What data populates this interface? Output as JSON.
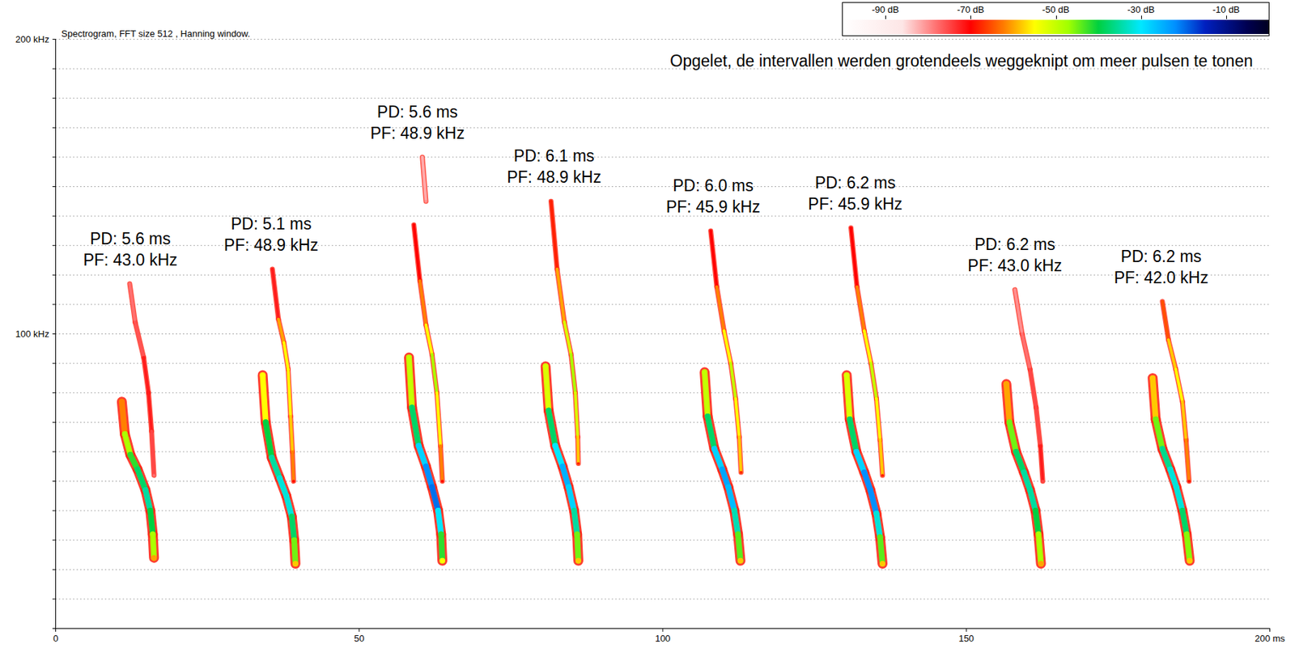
{
  "chart_data": {
    "type": "spectrogram",
    "title": "Spectrogram, FFT size 512 , Hanning window.",
    "annotation": "Opgelet, de intervallen werden grotendeels weggeknipt om meer pulsen te tonen",
    "xlim": [
      0,
      200
    ],
    "xticks": [
      0,
      50,
      100,
      150,
      {
        "value": 200,
        "label": "200 ms"
      }
    ],
    "ylim": [
      0,
      200
    ],
    "yticks": [
      {
        "value": 0,
        "label": null
      },
      {
        "value": 10,
        "label": null
      },
      {
        "value": 20,
        "label": null
      },
      {
        "value": 30,
        "label": null
      },
      {
        "value": 40,
        "label": null
      },
      {
        "value": 50,
        "label": null
      },
      {
        "value": 60,
        "label": null
      },
      {
        "value": 70,
        "label": null
      },
      {
        "value": 80,
        "label": null
      },
      {
        "value": 90,
        "label": null
      },
      {
        "value": 100,
        "label": "100 kHz"
      },
      {
        "value": 110,
        "label": null
      },
      {
        "value": 120,
        "label": null
      },
      {
        "value": 130,
        "label": null
      },
      {
        "value": 140,
        "label": null
      },
      {
        "value": 150,
        "label": null
      },
      {
        "value": 160,
        "label": null
      },
      {
        "value": 170,
        "label": null
      },
      {
        "value": 180,
        "label": null
      },
      {
        "value": 190,
        "label": null
      },
      {
        "value": 200,
        "label": "200 kHz"
      }
    ],
    "grid": "y",
    "colorbar": {
      "range": [
        -100,
        0
      ],
      "ticks": [
        {
          "value": -90,
          "label": "-90 dB"
        },
        {
          "value": -70,
          "label": "-70 dB"
        },
        {
          "value": -50,
          "label": "-50 dB"
        },
        {
          "value": -30,
          "label": "-30 dB"
        },
        {
          "value": -10,
          "label": "-10 dB"
        }
      ]
    },
    "pulses": [
      {
        "annotation": [
          "PD: 5.6 ms",
          "PF: 43.0 kHz"
        ],
        "traces": [
          {
            "x": [
              10.9,
              11.4,
              12.3,
              13.5,
              14.8,
              15.6,
              16.0,
              16.2
            ],
            "y": [
              77,
              66,
              59,
              54,
              47,
              40,
              32,
              24
            ],
            "db": [
              -62,
              -48,
              -42,
              -38,
              -35,
              -40,
              -48,
              -60
            ]
          },
          {
            "x": [
              12.2,
              13.1,
              14.5,
              15.3,
              15.8,
              16.2
            ],
            "y": [
              117,
              104,
              92,
              80,
              67,
              52
            ],
            "db": [
              -78,
              -76,
              -72,
              -72,
              -75,
              -78
            ]
          }
        ]
      },
      {
        "annotation": [
          "PD: 5.1 ms",
          "PF: 48.9 kHz"
        ],
        "traces": [
          {
            "x": [
              34.1,
              34.6,
              35.6,
              36.9,
              38.0,
              38.9,
              39.3,
              39.5
            ],
            "y": [
              86,
              70,
              58,
              51,
              45,
              38,
              30,
              22
            ],
            "db": [
              -55,
              -40,
              -35,
              -32,
              -32,
              -38,
              -45,
              -58
            ]
          },
          {
            "x": [
              35.7,
              36.7,
              37.6,
              38.3,
              38.7,
              39.0,
              39.2
            ],
            "y": [
              122,
              105,
              97,
              88,
              72,
              60,
              50
            ],
            "db": [
              -72,
              -60,
              -55,
              -55,
              -58,
              -62,
              -70
            ]
          }
        ]
      },
      {
        "annotation": [
          "PD: 5.6 ms",
          "PF: 48.9 kHz"
        ],
        "traces": [
          {
            "x": [
              58.2,
              58.7,
              59.8,
              61.0,
              62.0,
              63.0,
              63.5,
              63.7
            ],
            "y": [
              92,
              75,
              62,
              55,
              48,
              40,
              32,
              23
            ],
            "db": [
              -50,
              -38,
              -28,
              -22,
              -20,
              -30,
              -42,
              -55
            ]
          },
          {
            "x": [
              59.0,
              60.0,
              61.0,
              62.0,
              62.8,
              63.4,
              63.7
            ],
            "y": [
              137,
              118,
              103,
              93,
              80,
              62,
              50
            ],
            "db": [
              -70,
              -62,
              -55,
              -48,
              -55,
              -62,
              -70
            ]
          },
          {
            "x": [
              60.4,
              61.0
            ],
            "y": [
              160,
              145
            ],
            "db": [
              -82,
              -80
            ]
          }
        ]
      },
      {
        "annotation": [
          "PD: 6.1 ms",
          "PF: 48.9 kHz"
        ],
        "traces": [
          {
            "x": [
              80.7,
              81.2,
              82.3,
              83.5,
              84.5,
              85.4,
              85.9,
              86.1
            ],
            "y": [
              89,
              74,
              62,
              55,
              48,
              40,
              32,
              23
            ],
            "db": [
              -52,
              -38,
              -30,
              -25,
              -28,
              -35,
              -45,
              -58
            ]
          },
          {
            "x": [
              81.6,
              82.6,
              83.8,
              84.9,
              85.6,
              86.0,
              86.1
            ],
            "y": [
              145,
              122,
              104,
              93,
              80,
              65,
              56
            ],
            "db": [
              -68,
              -60,
              -52,
              -48,
              -52,
              -58,
              -68
            ]
          }
        ]
      },
      {
        "annotation": [
          "PD: 6.0 ms",
          "PF: 45.9 kHz"
        ],
        "traces": [
          {
            "x": [
              106.9,
              107.4,
              108.5,
              109.8,
              110.8,
              111.8,
              112.4,
              112.8
            ],
            "y": [
              87,
              72,
              61,
              54,
              48,
              40,
              32,
              23
            ],
            "db": [
              -50,
              -38,
              -28,
              -24,
              -26,
              -34,
              -44,
              -58
            ]
          },
          {
            "x": [
              107.9,
              108.9,
              110.1,
              111.2,
              112.0,
              112.6,
              112.9
            ],
            "y": [
              135,
              116,
              101,
              90,
              78,
              65,
              53
            ],
            "db": [
              -70,
              -62,
              -55,
              -50,
              -55,
              -58,
              -68
            ]
          }
        ]
      },
      {
        "annotation": [
          "PD: 6.2 ms",
          "PF: 45.9 kHz"
        ],
        "traces": [
          {
            "x": [
              130.3,
              130.8,
              131.9,
              133.2,
              134.2,
              135.2,
              135.8,
              136.2
            ],
            "y": [
              86,
              71,
              60,
              53,
              47,
              39,
              31,
              22
            ],
            "db": [
              -52,
              -38,
              -28,
              -22,
              -22,
              -32,
              -44,
              -58
            ]
          },
          {
            "x": [
              131.0,
              132.0,
              133.2,
              134.3,
              135.2,
              135.8,
              136.2
            ],
            "y": [
              136,
              116,
              101,
              90,
              78,
              64,
              52
            ],
            "db": [
              -70,
              -62,
              -55,
              -50,
              -55,
              -58,
              -68
            ]
          }
        ]
      },
      {
        "annotation": [
          "PD: 6.2 ms",
          "PF: 43.0 kHz"
        ],
        "traces": [
          {
            "x": [
              156.6,
              157.1,
              158.2,
              159.5,
              160.5,
              161.4,
              161.9,
              162.3
            ],
            "y": [
              83,
              70,
              60,
              53,
              47,
              40,
              32,
              22
            ],
            "db": [
              -60,
              -45,
              -38,
              -35,
              -35,
              -40,
              -48,
              -60
            ]
          },
          {
            "x": [
              158.0,
              159.2,
              160.5,
              161.5,
              162.2,
              162.6
            ],
            "y": [
              115,
              100,
              88,
              75,
              62,
              50
            ],
            "db": [
              -80,
              -78,
              -75,
              -75,
              -72,
              -75
            ]
          }
        ]
      },
      {
        "annotation": [
          "PD: 6.2 ms",
          "PF: 42.0 kHz"
        ],
        "traces": [
          {
            "x": [
              180.7,
              181.2,
              182.3,
              183.6,
              184.6,
              185.6,
              186.3,
              186.8
            ],
            "y": [
              85,
              71,
              61,
              54,
              48,
              40,
              32,
              23
            ],
            "db": [
              -58,
              -45,
              -36,
              -32,
              -32,
              -38,
              -46,
              -58
            ]
          },
          {
            "x": [
              182.3,
              183.3,
              184.5,
              185.6,
              186.2,
              186.7
            ],
            "y": [
              111,
              98,
              88,
              77,
              64,
              50
            ],
            "db": [
              -65,
              -58,
              -55,
              -58,
              -62,
              -70
            ]
          }
        ]
      }
    ]
  }
}
